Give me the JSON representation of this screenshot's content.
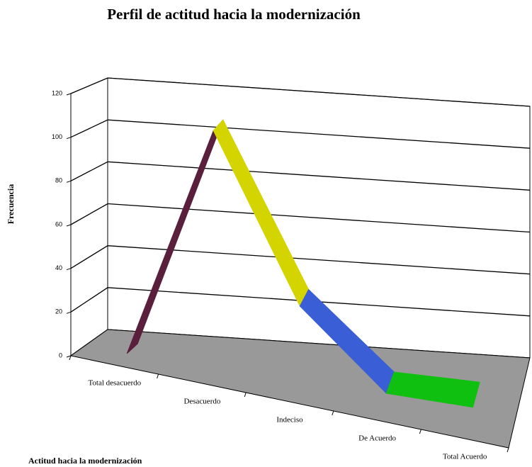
{
  "chart_data": {
    "type": "line3d",
    "title": "Perfil de actitud hacia la modernización",
    "x_label": "Actitud hacia la modernización",
    "y_label": "Frecuencia",
    "categories": [
      "Total desacuerdo",
      "Desacuerdo",
      "Indeciso",
      "De Acuerdo",
      "Total Acuerdo"
    ],
    "values": [
      0,
      110,
      35,
      1,
      1
    ],
    "colors": [
      "#5a1f3c",
      "#d4d400",
      "#3a5ed6",
      "#10c010"
    ],
    "ylim": [
      0,
      120
    ],
    "yticks": [
      0,
      20,
      40,
      60,
      80,
      100,
      120
    ],
    "grid": true
  }
}
